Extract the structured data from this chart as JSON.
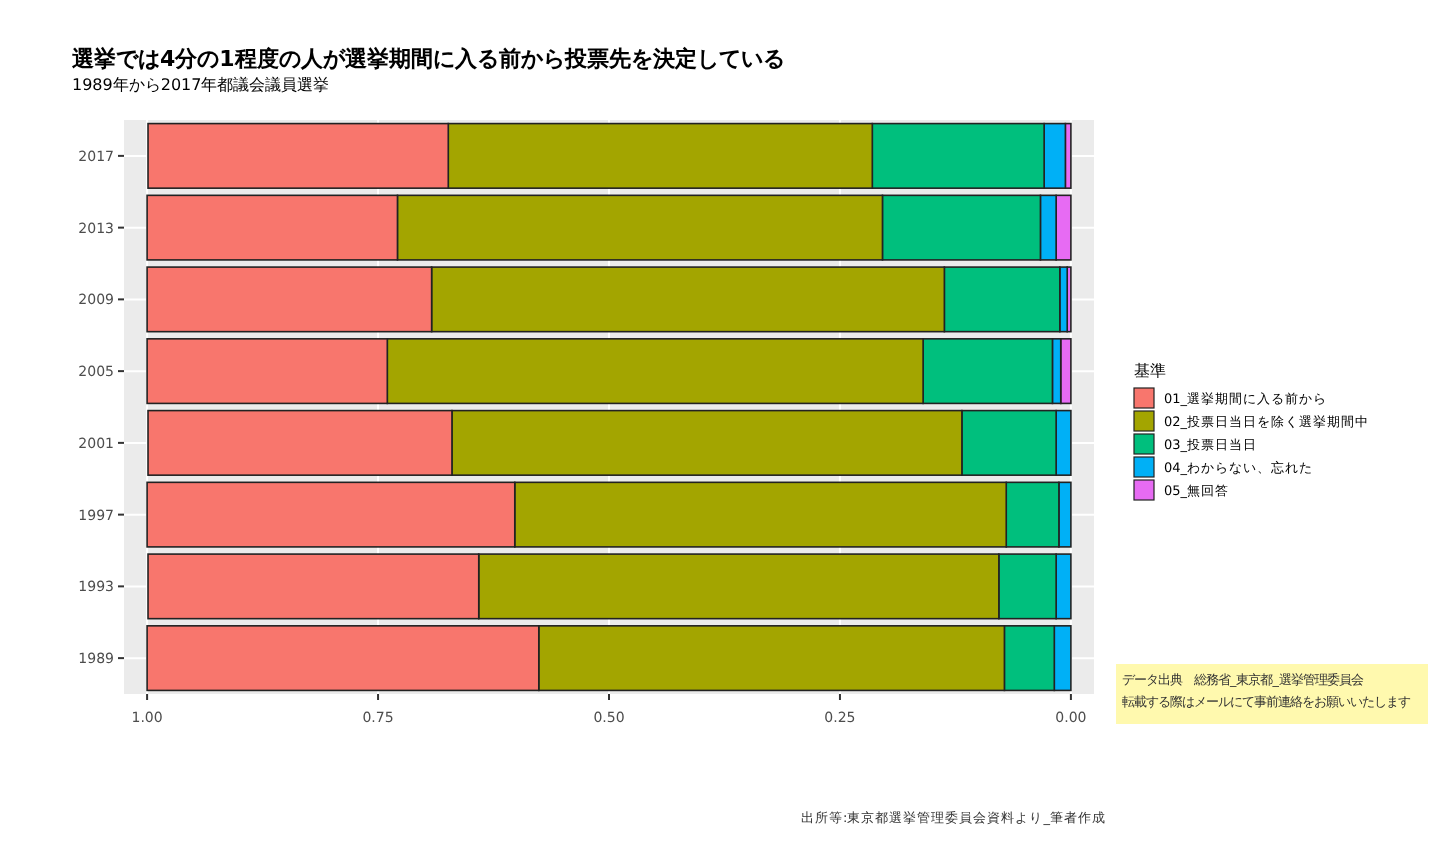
{
  "chart_data": {
    "type": "bar",
    "orientation": "horizontal",
    "stacked": true,
    "title": "選挙では4分の1程度の人が選挙期間に入る前から投票先を決定している",
    "subtitle": "1989年から2017年都議会議員選挙",
    "legend_title": "基準",
    "categories": [
      "2017",
      "2013",
      "2009",
      "2005",
      "2001",
      "1997",
      "1993",
      "1989"
    ],
    "series": [
      {
        "name": "05_無回答",
        "color": "#e76bf3",
        "values": [
          0.006,
          0.016,
          0.004,
          0.011,
          0,
          0,
          0,
          0
        ]
      },
      {
        "name": "04_わからない、忘れた",
        "color": "#00b0f6",
        "values": [
          0.023,
          0.017,
          0.008,
          0.009,
          0.016,
          0.013,
          0.016,
          0.018
        ]
      },
      {
        "name": "03_投票日当日",
        "color": "#00bf7d",
        "values": [
          0.186,
          0.171,
          0.125,
          0.14,
          0.102,
          0.057,
          0.062,
          0.054
        ]
      },
      {
        "name": "02_投票日当日を除く選挙期間中",
        "color": "#a3a500",
        "values": [
          0.459,
          0.525,
          0.555,
          0.58,
          0.552,
          0.532,
          0.563,
          0.504
        ]
      },
      {
        "name": "01_選挙期間に入る前から",
        "color": "#f8766d",
        "values": [
          0.325,
          0.271,
          0.308,
          0.26,
          0.329,
          0.398,
          0.358,
          0.424
        ]
      }
    ],
    "xlim": [
      1.025,
      -0.025
    ],
    "xticks": [
      {
        "value": 1,
        "label": "1.00"
      },
      {
        "value": 0.75,
        "label": "0.75"
      },
      {
        "value": 0.5,
        "label": "0.50"
      },
      {
        "value": 0.25,
        "label": "0.25"
      },
      {
        "value": 0,
        "label": "0.00"
      }
    ],
    "grid": true,
    "legend": "right",
    "annotations": [
      "データ出典　総務省_東京都_選挙管理委員会",
      "転載する際はメールにて事前連絡をお願いいたします",
      "出所等:東京都選挙管理委員会資料より_筆者作成"
    ]
  }
}
